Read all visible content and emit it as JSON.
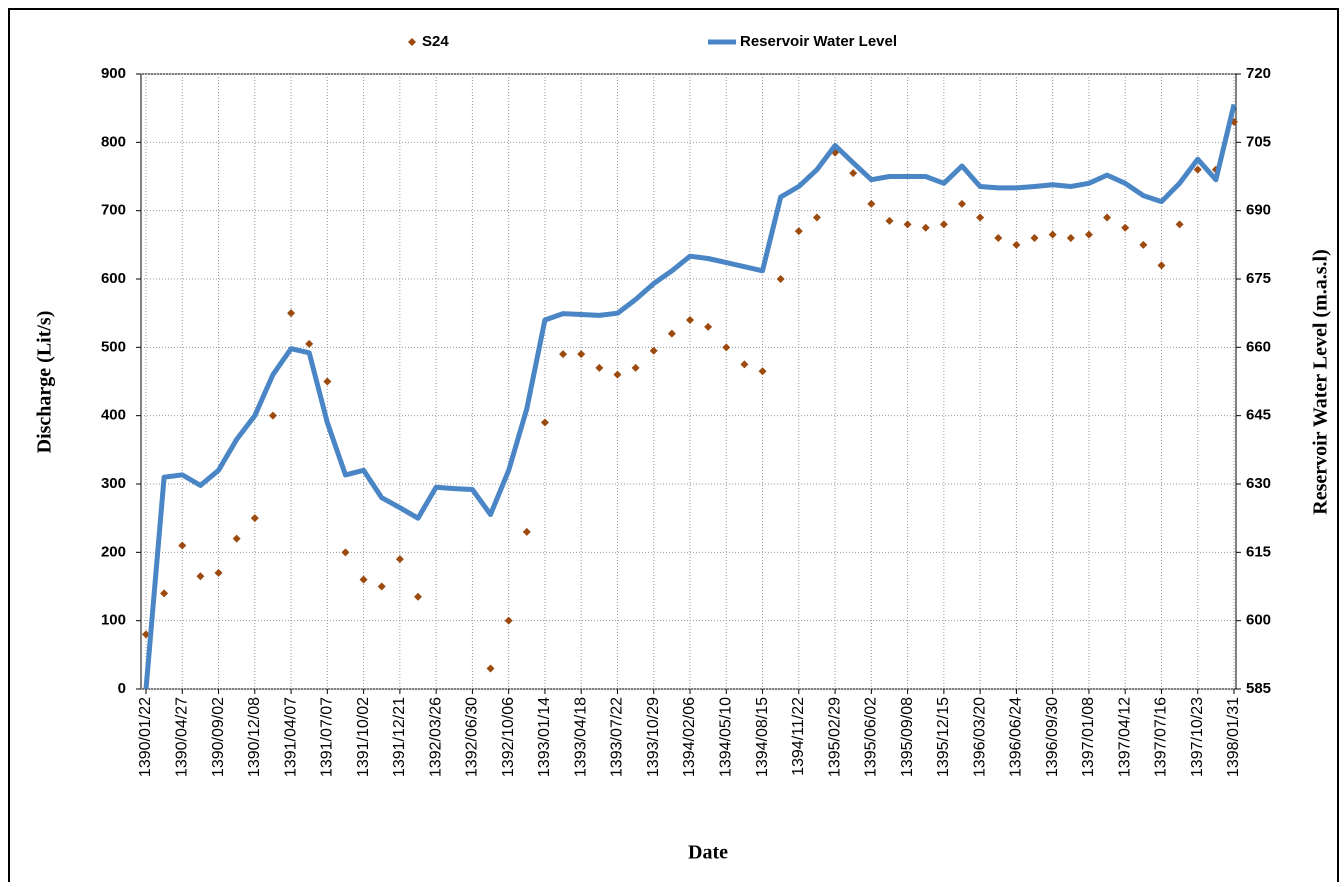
{
  "chart_data": {
    "type": "line",
    "x_label": "Date",
    "y_label": "Discharge (Lit/s)",
    "y2_label": "Reservoir Water  Level (m.a.s.l)",
    "categories": [
      "1390/01/22",
      null,
      "1390/04/27",
      null,
      "1390/09/02",
      null,
      "1390/12/08",
      null,
      "1391/04/07",
      null,
      "1391/07/07",
      null,
      "1391/10/02",
      null,
      "1391/12/21",
      null,
      "1392/03/26",
      null,
      "1392/06/30",
      null,
      "1392/10/06",
      null,
      "1393/01/14",
      null,
      "1393/04/18",
      null,
      "1393/07/22",
      null,
      "1393/10/29",
      null,
      "1394/02/06",
      null,
      "1394/05/10",
      null,
      "1394/08/15",
      null,
      "1394/11/22",
      null,
      "1395/02/29",
      null,
      "1395/06/02",
      null,
      "1395/09/08",
      null,
      "1395/12/15",
      null,
      "1396/03/20",
      null,
      "1396/06/24",
      null,
      "1396/09/30",
      null,
      "1397/01/08",
      null,
      "1397/04/12",
      null,
      "1397/07/16",
      null,
      "1397/10/23",
      null,
      "1398/01/31"
    ],
    "series": [
      {
        "name": "S24",
        "type": "scatter",
        "color": "#9c4a0e",
        "values": [
          80,
          140,
          210,
          165,
          170,
          220,
          250,
          400,
          550,
          505,
          450,
          200,
          160,
          150,
          190,
          135,
          null,
          null,
          null,
          30,
          100,
          230,
          390,
          490,
          490,
          470,
          460,
          470,
          495,
          520,
          540,
          530,
          500,
          475,
          465,
          600,
          670,
          690,
          785,
          755,
          710,
          685,
          680,
          675,
          680,
          710,
          690,
          660,
          650,
          660,
          665,
          660,
          665,
          690,
          675,
          650,
          620,
          680,
          760,
          760,
          830
        ]
      },
      {
        "name": "Reservoir Water Level",
        "type": "line",
        "axis": "y2",
        "color": "#4a85c5",
        "values": [
          585,
          631.5,
          632,
          629.7,
          633,
          639.8,
          645,
          654,
          659.7,
          658.8,
          643.5,
          632,
          633,
          627,
          624.8,
          622.5,
          629.3,
          629,
          628.8,
          623.3,
          633,
          646.5,
          666,
          667.4,
          667.2,
          667,
          667.5,
          670.5,
          674,
          676.8,
          680,
          679.5,
          678.6,
          677.7,
          676.8,
          693,
          695.3,
          699,
          704.3,
          700.5,
          696.8,
          697.5,
          697.5,
          697.5,
          696,
          699.8,
          695.3,
          695,
          695,
          695.3,
          695.7,
          695.3,
          696,
          697.8,
          696,
          693.3,
          692,
          696,
          701.3,
          696.8,
          713.3
        ]
      }
    ],
    "ylim": [
      0,
      900
    ],
    "yticks": [
      0,
      100,
      200,
      300,
      400,
      500,
      600,
      700,
      800,
      900
    ],
    "y2lim": [
      585,
      720
    ],
    "y2ticks": [
      585,
      600,
      615,
      630,
      645,
      660,
      675,
      690,
      705,
      720
    ],
    "grid": true
  }
}
